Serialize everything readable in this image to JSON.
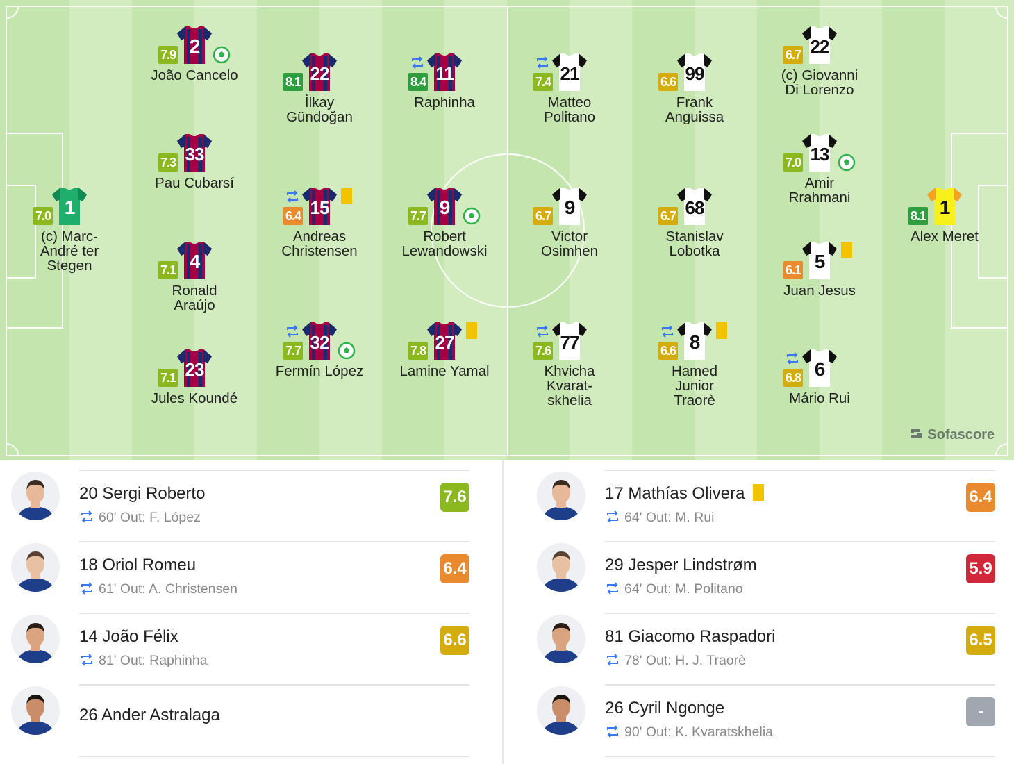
{
  "colors": {
    "pitch_light": "#d2ecc0",
    "pitch_dark": "#c4e5ae",
    "home_primary": "#a50044",
    "home_secondary": "#1a2a6c",
    "home_gk": "#1fae6b",
    "away_primary": "#ffffff",
    "away_gk": "#f7f01a",
    "rating_lime": "#8ab81e",
    "rating_green": "#2e9e3e",
    "rating_orange": "#e98a2f",
    "rating_gold": "#d4ac0d",
    "rating_red": "#d0283a",
    "rating_gray": "#a0a7b0",
    "sub_icon": "#3a78f2",
    "goal_icon": "#2fb34a",
    "yellow_card": "#f2c300"
  },
  "brand": {
    "name": "Sofascore",
    "icon": "sofascore-logo-icon"
  },
  "home": {
    "players": [
      {
        "number": "1",
        "name": "(c) Marc-André ter Stegen",
        "rating": "7.0",
        "rating_color": "rating_lime",
        "gk": true,
        "sub": false,
        "goal": false,
        "card": false
      },
      {
        "number": "2",
        "name": "João Cancelo",
        "rating": "7.9",
        "rating_color": "rating_lime",
        "gk": false,
        "sub": false,
        "goal": true,
        "card": false
      },
      {
        "number": "33",
        "name": "Pau Cubarsí",
        "rating": "7.3",
        "rating_color": "rating_lime",
        "gk": false,
        "sub": false,
        "goal": false,
        "card": false
      },
      {
        "number": "4",
        "name": "Ronald Araújo",
        "rating": "7.1",
        "rating_color": "rating_lime",
        "gk": false,
        "sub": false,
        "goal": false,
        "card": false
      },
      {
        "number": "23",
        "name": "Jules Koundé",
        "rating": "7.1",
        "rating_color": "rating_lime",
        "gk": false,
        "sub": false,
        "goal": false,
        "card": false
      },
      {
        "number": "22",
        "name": "İlkay Gündoğan",
        "rating": "8.1",
        "rating_color": "rating_green",
        "gk": false,
        "sub": false,
        "goal": false,
        "card": false
      },
      {
        "number": "15",
        "name": "Andreas Christensen",
        "rating": "6.4",
        "rating_color": "rating_orange",
        "gk": false,
        "sub": true,
        "goal": false,
        "card": true
      },
      {
        "number": "32",
        "name": "Fermín López",
        "rating": "7.7",
        "rating_color": "rating_lime",
        "gk": false,
        "sub": true,
        "goal": true,
        "card": false
      },
      {
        "number": "11",
        "name": "Raphinha",
        "rating": "8.4",
        "rating_color": "rating_green",
        "gk": false,
        "sub": true,
        "goal": false,
        "card": false
      },
      {
        "number": "9",
        "name": "Robert Lewandowski",
        "rating": "7.7",
        "rating_color": "rating_lime",
        "gk": false,
        "sub": false,
        "goal": true,
        "card": false
      },
      {
        "number": "27",
        "name": "Lamine Yamal",
        "rating": "7.8",
        "rating_color": "rating_lime",
        "gk": false,
        "sub": false,
        "goal": false,
        "card": true
      }
    ],
    "bench": [
      {
        "number_name": "20 Sergi Roberto",
        "out": "60' Out:",
        "out_player": "F. López",
        "rating": "7.6",
        "rating_color": "rating_lime"
      },
      {
        "number_name": "18 Oriol Romeu",
        "out": "61' Out:",
        "out_player": "A. Christensen",
        "rating": "6.4",
        "rating_color": "rating_orange"
      },
      {
        "number_name": "14 João Félix",
        "out": "81' Out:",
        "out_player": "Raphinha",
        "rating": "6.6",
        "rating_color": "rating_gold"
      },
      {
        "number_name": "26 Ander Astralaga",
        "out": "",
        "out_player": "",
        "rating": "",
        "rating_color": ""
      }
    ]
  },
  "away": {
    "players": [
      {
        "number": "21",
        "name": "Matteo Politano",
        "rating": "7.4",
        "rating_color": "rating_lime",
        "gk": false,
        "sub": true,
        "goal": false,
        "card": false
      },
      {
        "number": "9",
        "name": "Victor Osimhen",
        "rating": "6.7",
        "rating_color": "rating_gold",
        "gk": false,
        "sub": false,
        "goal": false,
        "card": false
      },
      {
        "number": "77",
        "name": "Khvicha Kvarat-skhelia",
        "rating": "7.6",
        "rating_color": "rating_lime",
        "gk": false,
        "sub": true,
        "goal": false,
        "card": false
      },
      {
        "number": "99",
        "name": "Frank Anguissa",
        "rating": "6.6",
        "rating_color": "rating_gold",
        "gk": false,
        "sub": false,
        "goal": false,
        "card": false
      },
      {
        "number": "68",
        "name": "Stanislav Lobotka",
        "rating": "6.7",
        "rating_color": "rating_gold",
        "gk": false,
        "sub": false,
        "goal": false,
        "card": false
      },
      {
        "number": "8",
        "name": "Hamed Junior Traorè",
        "rating": "6.6",
        "rating_color": "rating_gold",
        "gk": false,
        "sub": true,
        "goal": false,
        "card": true
      },
      {
        "number": "22",
        "name": "(c) Giovanni Di Lorenzo",
        "rating": "6.7",
        "rating_color": "rating_gold",
        "gk": false,
        "sub": false,
        "goal": false,
        "card": false
      },
      {
        "number": "13",
        "name": "Amir Rrahmani",
        "rating": "7.0",
        "rating_color": "rating_lime",
        "gk": false,
        "sub": false,
        "goal": true,
        "card": false
      },
      {
        "number": "5",
        "name": "Juan Jesus",
        "rating": "6.1",
        "rating_color": "rating_orange",
        "gk": false,
        "sub": false,
        "goal": false,
        "card": true
      },
      {
        "number": "6",
        "name": "Mário Rui",
        "rating": "6.8",
        "rating_color": "rating_gold",
        "gk": false,
        "sub": true,
        "goal": false,
        "card": false
      },
      {
        "number": "1",
        "name": "Alex Meret",
        "rating": "8.1",
        "rating_color": "rating_green",
        "gk": true,
        "sub": false,
        "goal": false,
        "card": false
      }
    ],
    "bench": [
      {
        "number_name": "17 Mathías Olivera",
        "out": "64' Out:",
        "out_player": "M. Rui",
        "rating": "6.4",
        "rating_color": "rating_orange",
        "card": true
      },
      {
        "number_name": "29 Jesper Lindstrøm",
        "out": "64' Out:",
        "out_player": "M. Politano",
        "rating": "5.9",
        "rating_color": "rating_red",
        "card": false
      },
      {
        "number_name": "81 Giacomo Raspadori",
        "out": "78' Out:",
        "out_player": "H. J. Traorè",
        "rating": "6.5",
        "rating_color": "rating_gold",
        "card": false
      },
      {
        "number_name": "26 Cyril Ngonge",
        "out": "90' Out:",
        "out_player": "K. Kvaratskhelia",
        "rating": "-",
        "rating_color": "rating_gray",
        "card": false
      }
    ]
  }
}
